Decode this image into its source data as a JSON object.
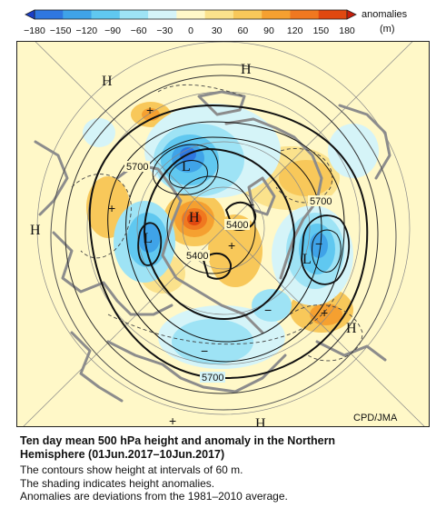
{
  "colorbar": {
    "ticks": [
      "−180",
      "−150",
      "−120",
      "−90",
      "−60",
      "−30",
      "0",
      "30",
      "60",
      "90",
      "120",
      "150",
      "180"
    ],
    "label_line1": "anomalies",
    "label_line2": "(m)",
    "colors": [
      "#1a3fc8",
      "#2f77e0",
      "#3fa3e8",
      "#60c8f0",
      "#9ee3f5",
      "#d5f4f8",
      "#fff8c8",
      "#fbe28c",
      "#f8c85a",
      "#f5a030",
      "#f07820",
      "#e04810",
      "#c81e0a"
    ]
  },
  "map": {
    "labels": {
      "high_nw": "H",
      "high_n": "H",
      "high_w": "H",
      "high_center": "H",
      "high_e": "H",
      "high_s": "H",
      "low_1": "L",
      "low_2": "L",
      "low_3": "L",
      "contour_5700_nw": "5700",
      "contour_5700_e": "5700",
      "contour_5700_s": "5700",
      "contour_5400_a": "5400",
      "contour_5400_b": "5400"
    },
    "credit": "CPD/JMA"
  },
  "caption": {
    "title_line1": "Ten day mean 500 hPa height and anomaly in the Northern",
    "title_line2": "Hemisphere (01Jun.2017–10Jun.2017)",
    "line1": "The contours show height at intervals of 60 m.",
    "line2": "The shading indicates height anomalies.",
    "line3": "Anomalies are deviations from the 1981–2010 average."
  }
}
